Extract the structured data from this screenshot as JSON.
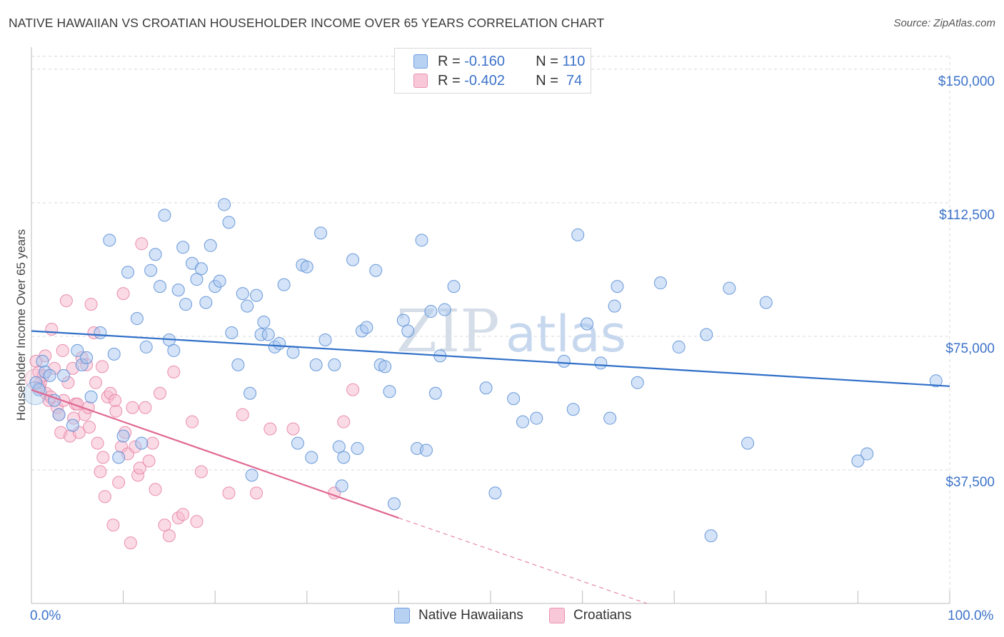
{
  "title": "NATIVE HAWAIIAN VS CROATIAN HOUSEHOLDER INCOME OVER 65 YEARS CORRELATION CHART",
  "source": "Source: ZipAtlas.com",
  "watermark": {
    "zip": "ZIP",
    "atlas": "atlas"
  },
  "legend": {
    "row1": {
      "r_label": "R = ",
      "r_value": "-0.160",
      "n_label": "N = ",
      "n_value": "110"
    },
    "row2": {
      "r_label": "R = ",
      "r_value": "-0.402",
      "n_label": "N = ",
      "n_value": " 74"
    }
  },
  "colors": {
    "blue_fill": "#a9c8ef",
    "blue_stroke": "#5b8fd6",
    "blue_line": "#2f6fc8",
    "pink_fill": "#f6bcd0",
    "pink_stroke": "#e883a6",
    "pink_line": "#e06892",
    "grid": "#d8d8d8",
    "axis_label": "#3d73c9"
  },
  "chart_data": {
    "type": "scatter",
    "title": "NATIVE HAWAIIAN VS CROATIAN HOUSEHOLDER INCOME OVER 65 YEARS CORRELATION CHART",
    "xlabel": "",
    "ylabel": "Householder Income Over 65 years",
    "xlim": [
      0,
      100
    ],
    "ylim": [
      0,
      155000
    ],
    "x_tick_labels": [
      "0.0%",
      "100.0%"
    ],
    "y_ticks": [
      37500,
      75000,
      112500,
      150000
    ],
    "y_tick_labels": [
      "$37,500",
      "$75,000",
      "$112,500",
      "$150,000"
    ],
    "series": [
      {
        "name": "Native Hawaiians",
        "color": "blue",
        "r": -0.16,
        "n": 110,
        "trend": {
          "x": [
            0,
            100
          ],
          "y": [
            76500,
            61000
          ]
        },
        "points": [
          [
            0.5,
            62000
          ],
          [
            0.8,
            60000
          ],
          [
            1.2,
            68000
          ],
          [
            1.5,
            65000
          ],
          [
            2.0,
            64000
          ],
          [
            2.5,
            57000
          ],
          [
            3.0,
            53000
          ],
          [
            3.5,
            64000
          ],
          [
            4.5,
            50000
          ],
          [
            5.0,
            71000
          ],
          [
            5.5,
            67000
          ],
          [
            6.0,
            69000
          ],
          [
            6.5,
            58000
          ],
          [
            7.5,
            76000
          ],
          [
            8.5,
            102000
          ],
          [
            9.0,
            70000
          ],
          [
            9.5,
            41000
          ],
          [
            10.0,
            47000
          ],
          [
            10.5,
            93000
          ],
          [
            11.5,
            80000
          ],
          [
            12.0,
            45000
          ],
          [
            12.5,
            72000
          ],
          [
            13.0,
            93500
          ],
          [
            13.5,
            98000
          ],
          [
            14.0,
            89000
          ],
          [
            14.5,
            109000
          ],
          [
            15.0,
            74000
          ],
          [
            15.5,
            71000
          ],
          [
            16.0,
            88000
          ],
          [
            16.5,
            100000
          ],
          [
            16.8,
            84000
          ],
          [
            17.5,
            95500
          ],
          [
            18.0,
            91000
          ],
          [
            18.5,
            94000
          ],
          [
            19.0,
            84500
          ],
          [
            19.5,
            100500
          ],
          [
            20.0,
            89000
          ],
          [
            20.5,
            90500
          ],
          [
            21.0,
            112000
          ],
          [
            21.5,
            107000
          ],
          [
            21.8,
            76000
          ],
          [
            22.5,
            67000
          ],
          [
            23.0,
            87000
          ],
          [
            23.5,
            83500
          ],
          [
            23.8,
            59000
          ],
          [
            24.0,
            36000
          ],
          [
            24.5,
            86500
          ],
          [
            25.0,
            75500
          ],
          [
            25.3,
            79000
          ],
          [
            25.8,
            75500
          ],
          [
            26.5,
            72000
          ],
          [
            27.0,
            73000
          ],
          [
            27.5,
            89500
          ],
          [
            28.5,
            70500
          ],
          [
            29.0,
            45000
          ],
          [
            29.5,
            95000
          ],
          [
            30.0,
            94500
          ],
          [
            30.5,
            41000
          ],
          [
            31.0,
            67000
          ],
          [
            31.5,
            104000
          ],
          [
            32.0,
            74000
          ],
          [
            33.0,
            67000
          ],
          [
            33.5,
            44000
          ],
          [
            33.8,
            33000
          ],
          [
            34.0,
            41000
          ],
          [
            35.0,
            96500
          ],
          [
            35.5,
            43500
          ],
          [
            36.0,
            76500
          ],
          [
            36.5,
            77500
          ],
          [
            37.5,
            93500
          ],
          [
            38.0,
            67000
          ],
          [
            38.5,
            66500
          ],
          [
            39.0,
            59500
          ],
          [
            39.5,
            28000
          ],
          [
            40.5,
            79500
          ],
          [
            41.0,
            76500
          ],
          [
            42.0,
            43500
          ],
          [
            42.5,
            102000
          ],
          [
            43.0,
            43000
          ],
          [
            43.5,
            82000
          ],
          [
            44.0,
            59000
          ],
          [
            44.5,
            69500
          ],
          [
            45.0,
            82500
          ],
          [
            46.0,
            89000
          ],
          [
            49.5,
            60500
          ],
          [
            50.5,
            31000
          ],
          [
            52.5,
            57500
          ],
          [
            53.5,
            51000
          ],
          [
            55.0,
            52000
          ],
          [
            58.0,
            68000
          ],
          [
            59.0,
            54500
          ],
          [
            59.5,
            103500
          ],
          [
            60.5,
            78500
          ],
          [
            62.0,
            67500
          ],
          [
            63.0,
            52000
          ],
          [
            63.5,
            83500
          ],
          [
            63.8,
            89000
          ],
          [
            66.0,
            62000
          ],
          [
            68.5,
            90000
          ],
          [
            70.5,
            72000
          ],
          [
            73.5,
            75500
          ],
          [
            74.0,
            19000
          ],
          [
            76.0,
            88500
          ],
          [
            78.0,
            45000
          ],
          [
            80.0,
            84500
          ],
          [
            90.0,
            40000
          ],
          [
            91.0,
            42000
          ],
          [
            98.5,
            62500
          ]
        ]
      },
      {
        "name": "Croatians",
        "color": "pink",
        "r": -0.402,
        "n": 74,
        "trend": {
          "x": [
            0,
            40
          ],
          "y": [
            60000,
            24000
          ]
        },
        "trend_extension": {
          "x": [
            40,
            67
          ],
          "y": [
            24000,
            0
          ]
        },
        "points": [
          [
            0.5,
            68000
          ],
          [
            0.8,
            65000
          ],
          [
            1.0,
            62000
          ],
          [
            1.3,
            64000
          ],
          [
            1.6,
            59000
          ],
          [
            1.9,
            57000
          ],
          [
            2.2,
            77000
          ],
          [
            2.5,
            66000
          ],
          [
            2.8,
            55000
          ],
          [
            3.0,
            53000
          ],
          [
            3.2,
            48000
          ],
          [
            3.5,
            57000
          ],
          [
            3.8,
            85000
          ],
          [
            4.0,
            62000
          ],
          [
            4.2,
            47000
          ],
          [
            4.5,
            66000
          ],
          [
            4.8,
            56000
          ],
          [
            5.0,
            56000
          ],
          [
            5.2,
            48000
          ],
          [
            5.5,
            69000
          ],
          [
            5.8,
            53000
          ],
          [
            6.0,
            67000
          ],
          [
            6.2,
            55000
          ],
          [
            6.5,
            84000
          ],
          [
            6.8,
            76000
          ],
          [
            7.0,
            62000
          ],
          [
            7.2,
            45000
          ],
          [
            7.5,
            37000
          ],
          [
            7.8,
            41000
          ],
          [
            8.0,
            30000
          ],
          [
            8.3,
            58000
          ],
          [
            8.6,
            59000
          ],
          [
            8.9,
            22000
          ],
          [
            9.2,
            54000
          ],
          [
            9.5,
            34000
          ],
          [
            9.8,
            44000
          ],
          [
            10.0,
            87000
          ],
          [
            10.2,
            48000
          ],
          [
            10.5,
            42000
          ],
          [
            10.8,
            17000
          ],
          [
            11.0,
            55000
          ],
          [
            11.3,
            44000
          ],
          [
            11.6,
            36000
          ],
          [
            12.0,
            101000
          ],
          [
            12.4,
            55000
          ],
          [
            12.8,
            40000
          ],
          [
            13.2,
            45000
          ],
          [
            13.5,
            32000
          ],
          [
            14.0,
            59000
          ],
          [
            14.5,
            22000
          ],
          [
            15.0,
            19000
          ],
          [
            15.5,
            65000
          ],
          [
            16.0,
            24000
          ],
          [
            16.5,
            25000
          ],
          [
            17.5,
            51000
          ],
          [
            18.0,
            23000
          ],
          [
            18.5,
            37000
          ],
          [
            21.5,
            31000
          ],
          [
            23.0,
            53000
          ],
          [
            24.5,
            31000
          ],
          [
            26.0,
            49000
          ],
          [
            28.5,
            49000
          ],
          [
            33.0,
            31000
          ],
          [
            34.0,
            51000
          ],
          [
            35.0,
            60000
          ],
          [
            4.6,
            52000
          ],
          [
            3.4,
            71000
          ],
          [
            2.1,
            58000
          ],
          [
            1.5,
            69500
          ],
          [
            0.9,
            60500
          ],
          [
            6.3,
            49500
          ],
          [
            7.7,
            66500
          ],
          [
            9.1,
            57000
          ],
          [
            11.8,
            38000
          ]
        ]
      }
    ]
  }
}
